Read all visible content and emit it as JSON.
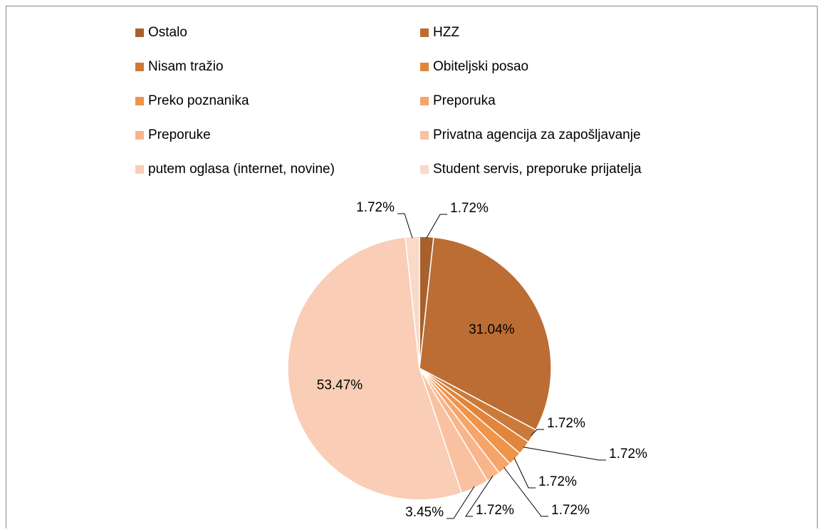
{
  "chart_data": {
    "type": "pie",
    "categories": [
      "Ostalo",
      "HZZ",
      "Nisam tražio",
      "Obiteljski posao",
      "Preko poznanika",
      "Preporuka",
      "Preporuke",
      "Privatna agencija za zapošljavanje",
      "putem oglasa (internet, novine)",
      "Student servis, preporuke prijatelja"
    ],
    "values": [
      1.72,
      31.04,
      1.72,
      1.72,
      1.72,
      1.72,
      1.72,
      3.45,
      53.47,
      1.72
    ],
    "value_labels": [
      "1.72%",
      "31.04%",
      "1.72%",
      "1.72%",
      "1.72%",
      "1.72%",
      "1.72%",
      "3.45%",
      "53.47%",
      "1.72%"
    ],
    "colors": [
      "#a8612d",
      "#bb6d33",
      "#cc7a3a",
      "#e0853c",
      "#f0944a",
      "#f6a56a",
      "#f8b58a",
      "#f9c1a0",
      "#f9cdb6",
      "#fad9c8"
    ],
    "legend": "top"
  }
}
